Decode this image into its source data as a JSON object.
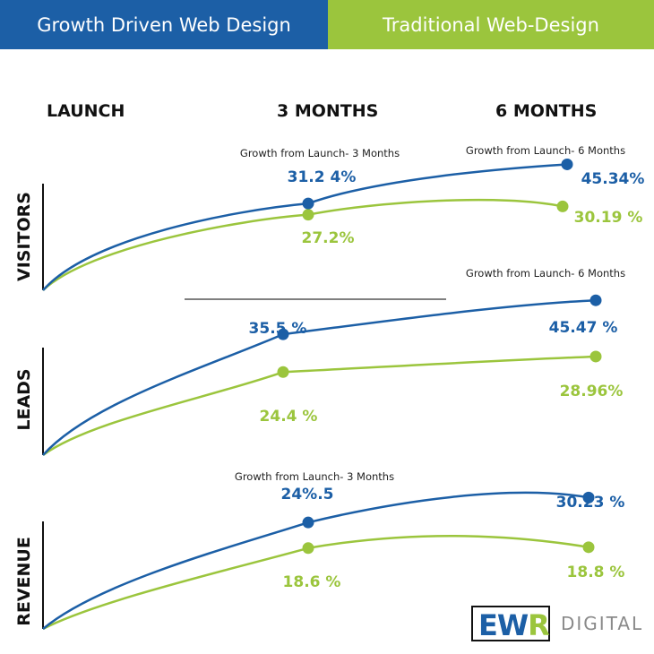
{
  "colors": {
    "growth": "#1c5fa6",
    "traditional": "#9bc53d",
    "axis": "#111111",
    "divider": "#555555"
  },
  "header": {
    "left_tab": {
      "label": "Growth Driven Web Design",
      "color": "#1c5fa6"
    },
    "right_tab": {
      "label": "Traditional Web-Design",
      "color": "#9bc53d"
    }
  },
  "columns": [
    "LAUNCH",
    "3 MONTHS",
    "6 MONTHS"
  ],
  "logo": {
    "ew": "EW",
    "r": "R",
    "digital": "DIGITAL"
  },
  "chart_data": [
    {
      "type": "line",
      "ylabel": "VISITORS",
      "x": [
        "LAUNCH",
        "3 MONTHS",
        "6 MONTHS"
      ],
      "annotations": [
        "Growth from Launch- 3 Months",
        "Growth from Launch- 6 Months"
      ],
      "series": [
        {
          "name": "Growth Driven Web Design",
          "values": [
            0,
            31.24,
            45.34
          ],
          "labels": [
            "",
            "31.2 4%",
            "45.34%"
          ]
        },
        {
          "name": "Traditional Web-Design",
          "values": [
            0,
            27.2,
            30.19
          ],
          "labels": [
            "",
            "27.2%",
            "30.19 %"
          ]
        }
      ]
    },
    {
      "type": "line",
      "ylabel": "LEADS",
      "x": [
        "LAUNCH",
        "3 MONTHS",
        "6 MONTHS"
      ],
      "annotations": [
        "Growth from Launch- 6 Months"
      ],
      "series": [
        {
          "name": "Growth Driven Web Design",
          "values": [
            0,
            35.5,
            45.47
          ],
          "labels": [
            "",
            "35.5 %",
            "45.47 %"
          ]
        },
        {
          "name": "Traditional Web-Design",
          "values": [
            0,
            24.4,
            28.96
          ],
          "labels": [
            "",
            "24.4 %",
            "28.96%"
          ]
        }
      ]
    },
    {
      "type": "line",
      "ylabel": "REVENUE",
      "x": [
        "LAUNCH",
        "3 MONTHS",
        "6 MONTHS"
      ],
      "annotations": [
        "Growth from Launch- 3 Months"
      ],
      "series": [
        {
          "name": "Growth Driven Web Design",
          "values": [
            0,
            24.5,
            30.23
          ],
          "labels": [
            "",
            "24%.5",
            "30.23 %"
          ]
        },
        {
          "name": "Traditional Web-Design",
          "values": [
            0,
            18.6,
            18.8
          ],
          "labels": [
            "",
            "18.6 %",
            "18.8 %"
          ]
        }
      ]
    }
  ]
}
